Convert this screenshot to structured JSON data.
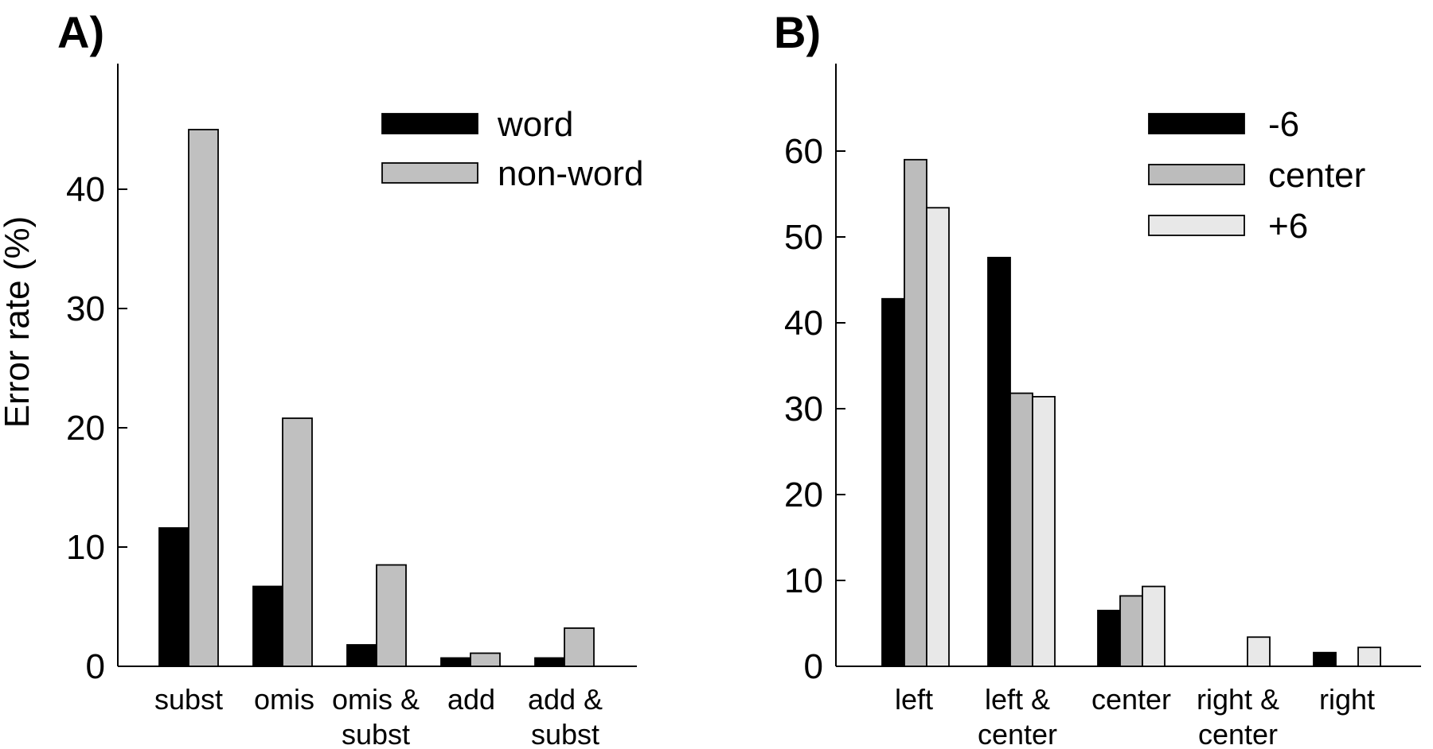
{
  "chart_data": [
    {
      "type": "bar",
      "panel": "A)",
      "ylabel": "Error rate (%)",
      "ylim": [
        0,
        50
      ],
      "yticks": [
        0,
        10,
        20,
        30,
        40
      ],
      "categories": [
        [
          "subst"
        ],
        [
          "omis"
        ],
        [
          "omis &",
          "subst"
        ],
        [
          "add"
        ],
        [
          "add &",
          "subst"
        ]
      ],
      "series": [
        {
          "name": "word",
          "color": "#000000",
          "values": [
            11.6,
            6.7,
            1.8,
            0.7,
            0.7
          ]
        },
        {
          "name": "non-word",
          "color": "#c0c0c0",
          "values": [
            45.0,
            20.8,
            8.5,
            1.1,
            3.2
          ]
        }
      ],
      "legend": "top-right"
    },
    {
      "type": "bar",
      "panel": "B)",
      "ylabel": "",
      "ylim": [
        0,
        70
      ],
      "yticks": [
        0,
        10,
        20,
        30,
        40,
        50,
        60
      ],
      "categories": [
        [
          "left"
        ],
        [
          "left &",
          "center"
        ],
        [
          "center"
        ],
        [
          "right &",
          "center"
        ],
        [
          "right"
        ]
      ],
      "series": [
        {
          "name": "-6",
          "color": "#000000",
          "values": [
            42.8,
            47.6,
            6.5,
            0,
            1.6
          ]
        },
        {
          "name": "center",
          "color": "#bcbcbc",
          "values": [
            59.0,
            31.8,
            8.2,
            0,
            0
          ]
        },
        {
          "name": "+6",
          "color": "#e8e8e8",
          "values": [
            53.4,
            31.4,
            9.3,
            3.4,
            2.2
          ]
        }
      ],
      "legend": "top-right"
    }
  ]
}
